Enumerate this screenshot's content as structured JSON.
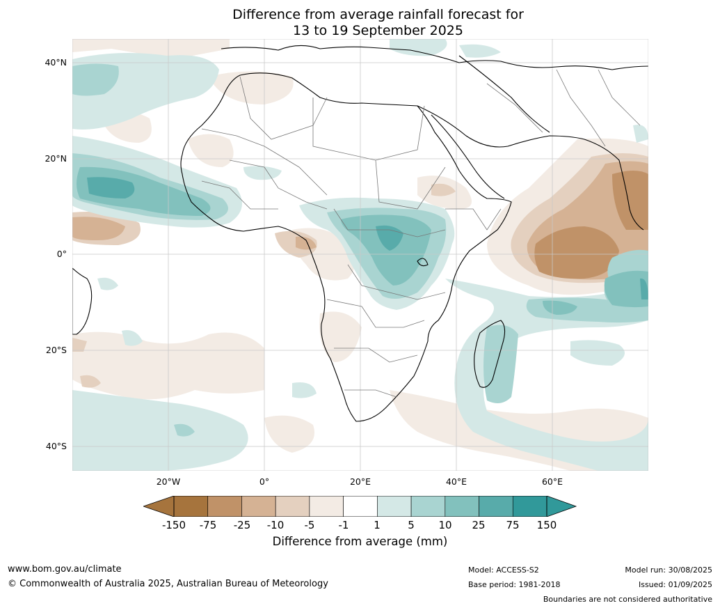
{
  "title_line1": "Difference from average rainfall forecast for",
  "title_line2": "13 to 19 September 2025",
  "map": {
    "region": "Africa",
    "lat_labels": [
      "40°N",
      "20°N",
      "0°",
      "20°S",
      "40°S"
    ],
    "lon_labels": [
      "20°W",
      "0°",
      "20°E",
      "40°E",
      "60°E"
    ]
  },
  "legend": {
    "title": "Difference from average (mm)",
    "ticks": [
      "-150",
      "-75",
      "-25",
      "-10",
      "-5",
      "-1",
      "1",
      "5",
      "10",
      "25",
      "75",
      "150"
    ],
    "colors": [
      "#a6743d",
      "#c09268",
      "#d5b294",
      "#e4d0bf",
      "#f3ebe4",
      "#ffffff",
      "#d4e8e6",
      "#a9d4d1",
      "#82c1bd",
      "#58abaa",
      "#31999a"
    ]
  },
  "footer": {
    "website": "www.bom.gov.au/climate",
    "copyright": "© Commonwealth of Australia 2025, Australian Bureau of Meteorology",
    "model": "Model: ACCESS-S2",
    "base_period": "Base period: 1981-2018",
    "model_run": "Model run: 30/08/2025",
    "issued": "Issued: 01/09/2025",
    "disclaimer": "Boundaries are not considered authoritative"
  }
}
